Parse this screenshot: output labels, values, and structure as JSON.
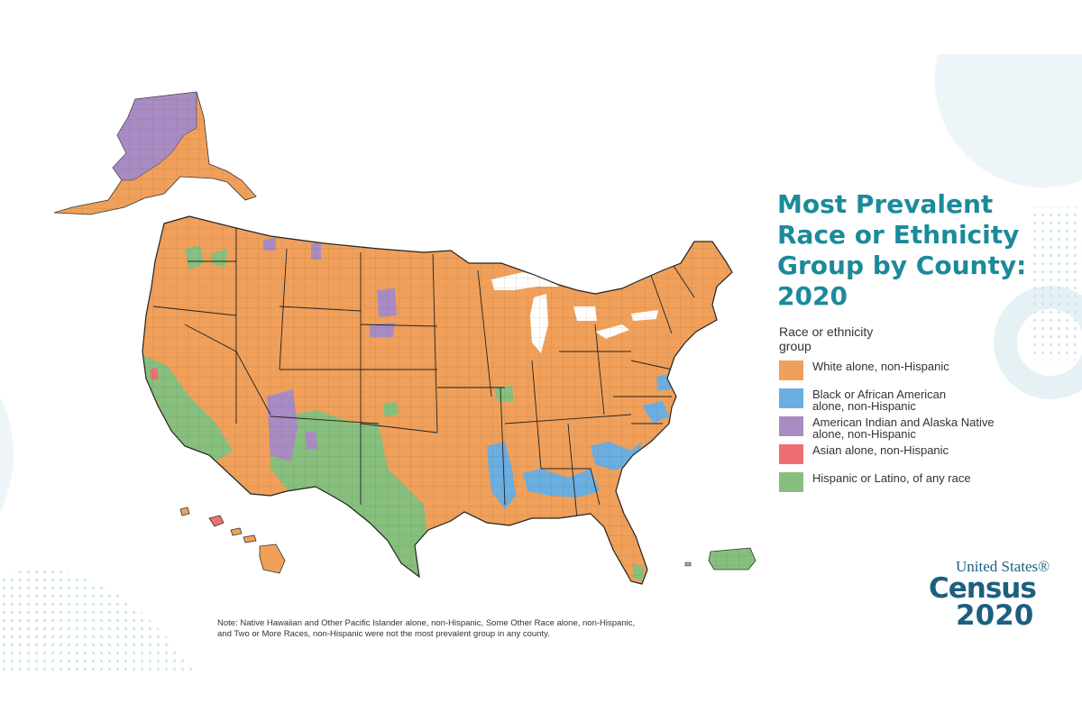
{
  "title_lines": [
    "Most Prevalent",
    "Race or Ethnicity",
    "Group by County:",
    "2020"
  ],
  "legend": {
    "title_lines": [
      "Race or ethnicity",
      "group"
    ],
    "items": [
      {
        "lines": [
          "White alone, non-Hispanic"
        ],
        "color": "#f0a05a"
      },
      {
        "lines": [
          "Black or African American",
          "alone, non-Hispanic"
        ],
        "color": "#6aaee2"
      },
      {
        "lines": [
          "American Indian and Alaska Native",
          "alone, non-Hispanic"
        ],
        "color": "#a98bc4"
      },
      {
        "lines": [
          "Asian alone, non-Hispanic"
        ],
        "color": "#ee6f72"
      },
      {
        "lines": [
          "Hispanic or Latino, of any race"
        ],
        "color": "#86bf7e"
      }
    ]
  },
  "note_lines": [
    "Note: Native Hawaiian and Other Pacific Islander alone, non-Hispanic, Some Other Race alone, non-Hispanic,",
    "and Two or More Races, non-Hispanic were not the most prevalent group in any county."
  ],
  "logo": {
    "line1": "United States®",
    "line2": "Census",
    "line3": "2020"
  },
  "colors": {
    "accent": "#1b8a9a",
    "logo": "#1d5f80",
    "border": "#333333"
  }
}
